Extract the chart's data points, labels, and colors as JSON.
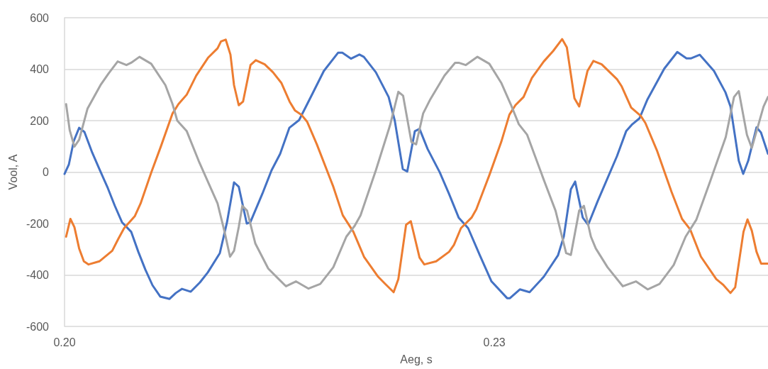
{
  "chart_data": {
    "type": "line",
    "xlabel": "Aeg, s",
    "ylabel": "Vool, A",
    "xlim": [
      0.2,
      0.2491
    ],
    "xticks": [
      {
        "value": 0.2,
        "label": "0.20"
      },
      {
        "value": 0.23,
        "label": "0.23"
      }
    ],
    "ylim": [
      -600,
      600
    ],
    "yticks": [
      -600,
      -400,
      -200,
      0,
      200,
      400,
      600
    ],
    "grid": "y",
    "marker": "none",
    "line_style": "solid",
    "series": [
      {
        "color": "#4472c4",
        "x": [
          0.2,
          0.2003,
          0.20064,
          0.20102,
          0.20139,
          0.20193,
          0.20243,
          0.20302,
          0.20351,
          0.20401,
          0.20465,
          0.20515,
          0.20564,
          0.20614,
          0.20668,
          0.20733,
          0.20777,
          0.2082,
          0.20881,
          0.20945,
          0.21,
          0.21084,
          0.21134,
          0.21183,
          0.21216,
          0.21272,
          0.21297,
          0.21381,
          0.21445,
          0.21505,
          0.21569,
          0.21637,
          0.21678,
          0.21728,
          0.2181,
          0.21909,
          0.21939,
          0.22,
          0.22058,
          0.22089,
          0.22173,
          0.22262,
          0.22305,
          0.22361,
          0.22392,
          0.22445,
          0.22478,
          0.22534,
          0.22619,
          0.22683,
          0.22751,
          0.22817,
          0.22899,
          0.2298,
          0.23089,
          0.23109,
          0.23178,
          0.23246,
          0.23345,
          0.23444,
          0.23485,
          0.23534,
          0.23564,
          0.23617,
          0.23655,
          0.23722,
          0.23856,
          0.2392,
          0.23963,
          0.24013,
          0.24069,
          0.24186,
          0.24277,
          0.24341,
          0.24371,
          0.24434,
          0.24533,
          0.24613,
          0.24648,
          0.24706,
          0.24737,
          0.24772,
          0.2483,
          0.24861,
          0.2491
        ],
        "values": [
          -7,
          29,
          120,
          172,
          156,
          76,
          12,
          -62,
          -131,
          -195,
          -232,
          -310,
          -379,
          -440,
          -484,
          -493,
          -470,
          -454,
          -465,
          -429,
          -390,
          -315,
          -195,
          -40,
          -57,
          -200,
          -195,
          -84,
          7,
          71,
          172,
          202,
          247,
          302,
          393,
          464,
          464,
          441,
          457,
          448,
          388,
          292,
          200,
          12,
          2,
          159,
          168,
          90,
          -1,
          -84,
          -177,
          -218,
          -324,
          -425,
          -490,
          -490,
          -456,
          -467,
          -407,
          -324,
          -250,
          -67,
          -37,
          -177,
          -205,
          -112,
          62,
          159,
          186,
          209,
          283,
          402,
          467,
          442,
          442,
          456,
          393,
          310,
          255,
          44,
          -7,
          44,
          174,
          154,
          71
        ]
      },
      {
        "color": "#ed7d31",
        "x": [
          0.20011,
          0.20041,
          0.20069,
          0.20102,
          0.20135,
          0.20168,
          0.20243,
          0.20333,
          0.20375,
          0.20416,
          0.2049,
          0.20531,
          0.20605,
          0.20672,
          0.20754,
          0.20795,
          0.20853,
          0.20919,
          0.21001,
          0.21068,
          0.21092,
          0.21125,
          0.21158,
          0.21183,
          0.21216,
          0.21246,
          0.21298,
          0.21335,
          0.21397,
          0.21455,
          0.21513,
          0.21571,
          0.21609,
          0.21653,
          0.21694,
          0.21761,
          0.21876,
          0.21942,
          0.22016,
          0.2209,
          0.22189,
          0.22239,
          0.22297,
          0.2233,
          0.22384,
          0.22417,
          0.22478,
          0.22511,
          0.22594,
          0.22684,
          0.22718,
          0.22767,
          0.22841,
          0.22874,
          0.22965,
          0.23048,
          0.23105,
          0.23147,
          0.23204,
          0.23262,
          0.23345,
          0.23411,
          0.23473,
          0.23506,
          0.23559,
          0.23592,
          0.2365,
          0.23691,
          0.23749,
          0.23856,
          0.23889,
          0.23955,
          0.24021,
          0.24054,
          0.24137,
          0.24236,
          0.2431,
          0.24367,
          0.24442,
          0.24549,
          0.24599,
          0.24648,
          0.24681,
          0.24739,
          0.24767,
          0.24797,
          0.2483,
          0.24862,
          0.2491
        ],
        "values": [
          -251,
          -182,
          -214,
          -297,
          -347,
          -359,
          -347,
          -306,
          -260,
          -218,
          -172,
          -122,
          -2,
          99,
          228,
          264,
          301,
          375,
          444,
          481,
          508,
          515,
          457,
          338,
          260,
          274,
          416,
          435,
          419,
          388,
          347,
          274,
          239,
          223,
          195,
          108,
          -57,
          -168,
          -232,
          -329,
          -407,
          -435,
          -467,
          -416,
          -205,
          -191,
          -333,
          -359,
          -347,
          -310,
          -283,
          -218,
          -177,
          -145,
          -12,
          117,
          223,
          260,
          292,
          366,
          430,
          471,
          517,
          485,
          287,
          255,
          393,
          432,
          419,
          361,
          333,
          251,
          219,
          191,
          81,
          -76,
          -182,
          -223,
          -329,
          -416,
          -439,
          -470,
          -448,
          -232,
          -184,
          -228,
          -310,
          -356,
          -356
        ]
      },
      {
        "color": "#a5a5a5",
        "x": [
          0.20011,
          0.20036,
          0.20069,
          0.20102,
          0.2016,
          0.20251,
          0.20308,
          0.20371,
          0.20432,
          0.20465,
          0.20523,
          0.20605,
          0.20704,
          0.20754,
          0.20787,
          0.20853,
          0.20936,
          0.21068,
          0.21117,
          0.21155,
          0.21183,
          0.21216,
          0.21241,
          0.21274,
          0.21332,
          0.21422,
          0.21488,
          0.21546,
          0.21615,
          0.21703,
          0.21785,
          0.21876,
          0.21967,
          0.22025,
          0.22066,
          0.22173,
          0.22272,
          0.2233,
          0.22363,
          0.22421,
          0.22454,
          0.22503,
          0.22553,
          0.22652,
          0.22726,
          0.22751,
          0.228,
          0.22882,
          0.22965,
          0.23048,
          0.23114,
          0.23171,
          0.23229,
          0.23345,
          0.23427,
          0.23501,
          0.23534,
          0.23592,
          0.23625,
          0.23674,
          0.23708,
          0.2379,
          0.23897,
          0.23988,
          0.2407,
          0.24153,
          0.24252,
          0.24335,
          0.24409,
          0.24516,
          0.24615,
          0.24673,
          0.24706,
          0.24763,
          0.24797,
          0.24879,
          0.2491
        ],
        "values": [
          264,
          163,
          99,
          126,
          246,
          338,
          384,
          430,
          416,
          425,
          448,
          421,
          338,
          264,
          200,
          159,
          44,
          -122,
          -232,
          -329,
          -306,
          -214,
          -131,
          -150,
          -278,
          -375,
          -412,
          -444,
          -425,
          -453,
          -435,
          -370,
          -251,
          -209,
          -168,
          7,
          182,
          312,
          297,
          117,
          108,
          228,
          283,
          375,
          425,
          425,
          416,
          448,
          421,
          347,
          264,
          186,
          145,
          -30,
          -150,
          -315,
          -322,
          -150,
          -131,
          -251,
          -297,
          -370,
          -444,
          -425,
          -456,
          -435,
          -361,
          -251,
          -186,
          -21,
          136,
          292,
          315,
          145,
          94,
          255,
          292
        ]
      }
    ]
  }
}
